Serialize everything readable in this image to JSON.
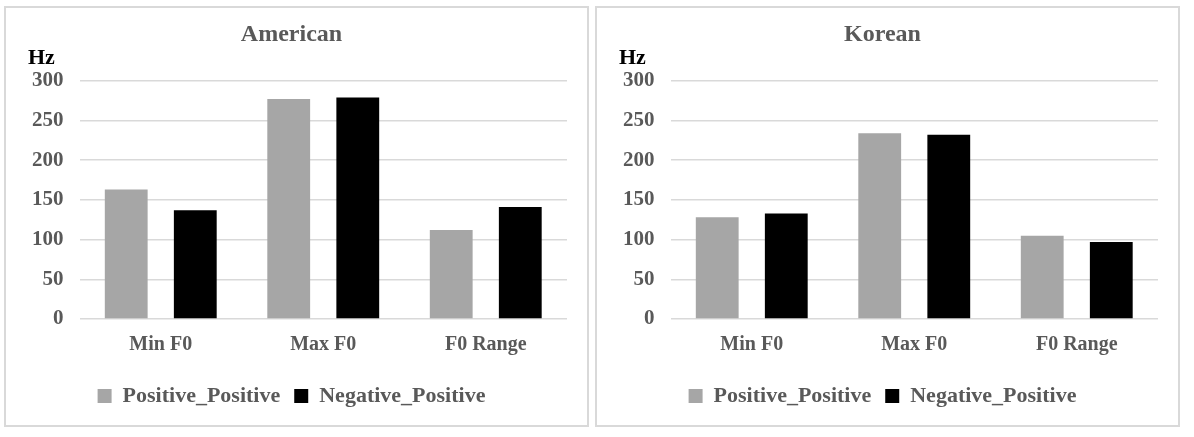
{
  "chart_data": [
    {
      "type": "bar",
      "title": "American",
      "ylabel": "Hz",
      "categories": [
        "Min F0",
        "Max F0",
        "F0 Range"
      ],
      "series": [
        {
          "name": "Positive_Positive",
          "color": "#a6a6a6",
          "values": [
            163,
            277,
            112
          ]
        },
        {
          "name": "Negative_Positive",
          "color": "#000000",
          "values": [
            137,
            279,
            141
          ]
        }
      ],
      "ylim": [
        0,
        300
      ],
      "yticks": [
        0,
        50,
        100,
        150,
        200,
        250,
        300
      ],
      "grid": "y",
      "legend": "bottom"
    },
    {
      "type": "bar",
      "title": "Korean",
      "ylabel": "Hz",
      "categories": [
        "Min F0",
        "Max F0",
        "F0 Range"
      ],
      "series": [
        {
          "name": "Positive_Positive",
          "color": "#a6a6a6",
          "values": [
            128,
            234,
            105
          ]
        },
        {
          "name": "Negative_Positive",
          "color": "#000000",
          "values": [
            133,
            232,
            97
          ]
        }
      ],
      "ylim": [
        0,
        300
      ],
      "yticks": [
        0,
        50,
        100,
        150,
        200,
        250,
        300
      ],
      "grid": "y",
      "legend": "bottom"
    }
  ]
}
